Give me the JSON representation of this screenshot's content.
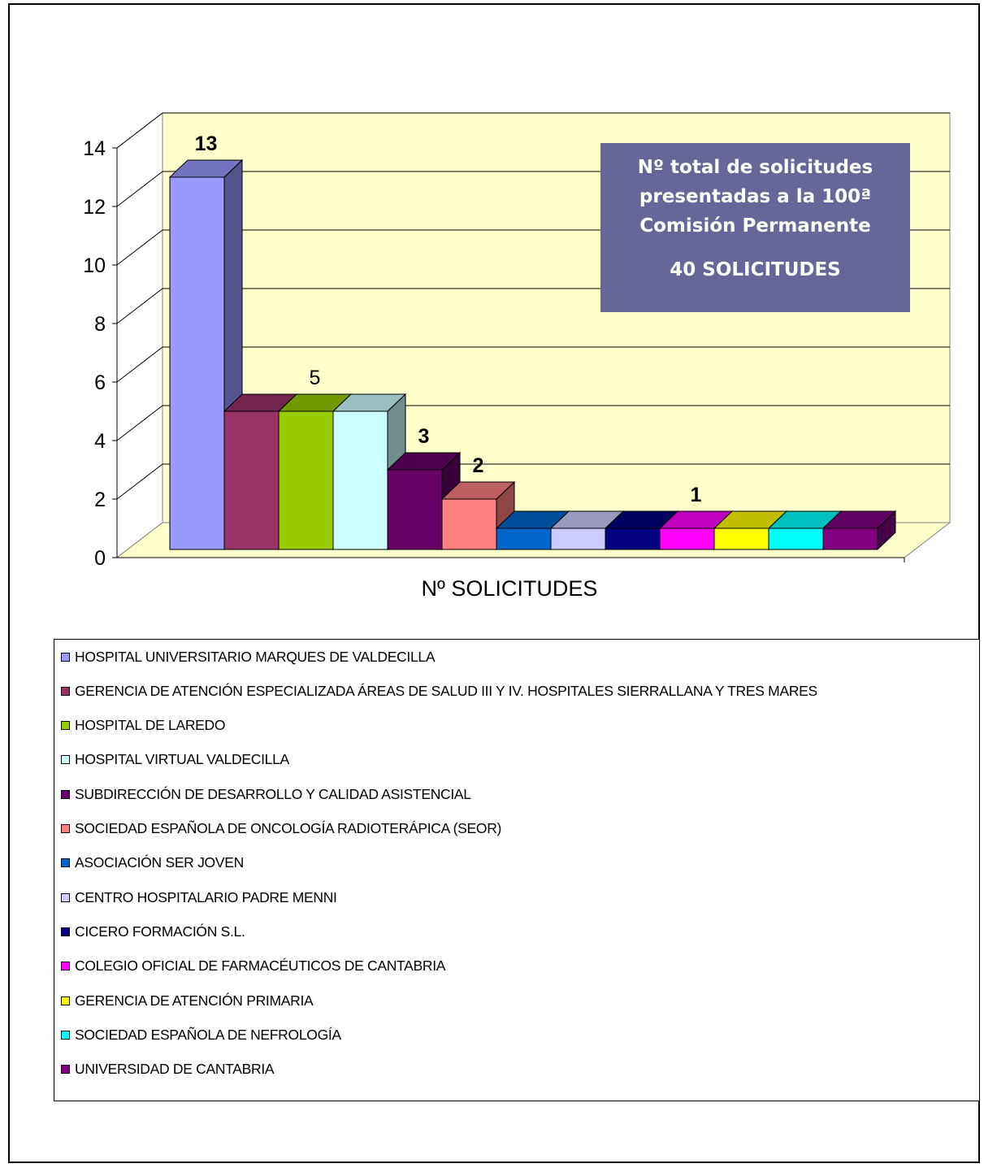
{
  "chart_data": {
    "type": "bar",
    "xlabel": "Nº SOLICITUDES",
    "ylabel": "",
    "ylim": [
      0,
      14
    ],
    "yticks": [
      0,
      2,
      4,
      6,
      8,
      10,
      12,
      14
    ],
    "grid": true,
    "legend_position": "bottom",
    "series": [
      {
        "name": "HOSPITAL UNIVERSITARIO MARQUES DE VALDECILLA",
        "value": 13,
        "color": "#9999ff"
      },
      {
        "name": "GERENCIA DE ATENCIÓN ESPECIALIZADA ÁREAS DE SALUD III Y IV. HOSPITALES SIERRALLANA Y TRES MARES",
        "value": 5,
        "color": "#993366"
      },
      {
        "name": "HOSPITAL DE LAREDO",
        "value": 5,
        "color": "#99cc00"
      },
      {
        "name": "HOSPITAL VIRTUAL VALDECILLA",
        "value": 5,
        "color": "#ccffff"
      },
      {
        "name": "SUBDIRECCIÓN DE DESARROLLO Y CALIDAD ASISTENCIAL",
        "value": 3,
        "color": "#660066"
      },
      {
        "name": "SOCIEDAD ESPAÑOLA DE ONCOLOGÍA RADIOTERÁPICA (SEOR)",
        "value": 2,
        "color": "#ff8080"
      },
      {
        "name": "ASOCIACIÓN SER JOVEN",
        "value": 1,
        "color": "#0066cc"
      },
      {
        "name": "CENTRO HOSPITALARIO PADRE MENNI",
        "value": 1,
        "color": "#ccccff"
      },
      {
        "name": "CICERO FORMACIÓN S.L.",
        "value": 1,
        "color": "#000080"
      },
      {
        "name": "COLEGIO OFICIAL DE FARMACÉUTICOS DE CANTABRIA",
        "value": 1,
        "color": "#ff00ff"
      },
      {
        "name": "GERENCIA DE ATENCIÓN PRIMARIA",
        "value": 1,
        "color": "#ffff00"
      },
      {
        "name": "SOCIEDAD ESPAÑOLA DE NEFROLOGÍA",
        "value": 1,
        "color": "#00ffff"
      },
      {
        "name": "UNIVERSIDAD DE CANTABRIA",
        "value": 1,
        "color": "#800080"
      }
    ],
    "data_labels": [
      {
        "text": "13",
        "series_index": 0,
        "bold": true
      },
      {
        "text": "5",
        "series_index": 2,
        "bold": false
      },
      {
        "text": "3",
        "series_index": 4,
        "bold": true
      },
      {
        "text": "2",
        "series_index": 5,
        "bold": true
      },
      {
        "text": "1",
        "series_index": 9,
        "bold": true
      }
    ],
    "colors": {
      "wall": "#ffffcc",
      "floor": "#ffffcc",
      "gridline": "#000000"
    }
  },
  "callout": {
    "line1": "Nº  total de solicitudes",
    "line2": "presentadas a la 100ª",
    "line3": "Comisión Permanente",
    "total": "40 SOLICITUDES"
  }
}
